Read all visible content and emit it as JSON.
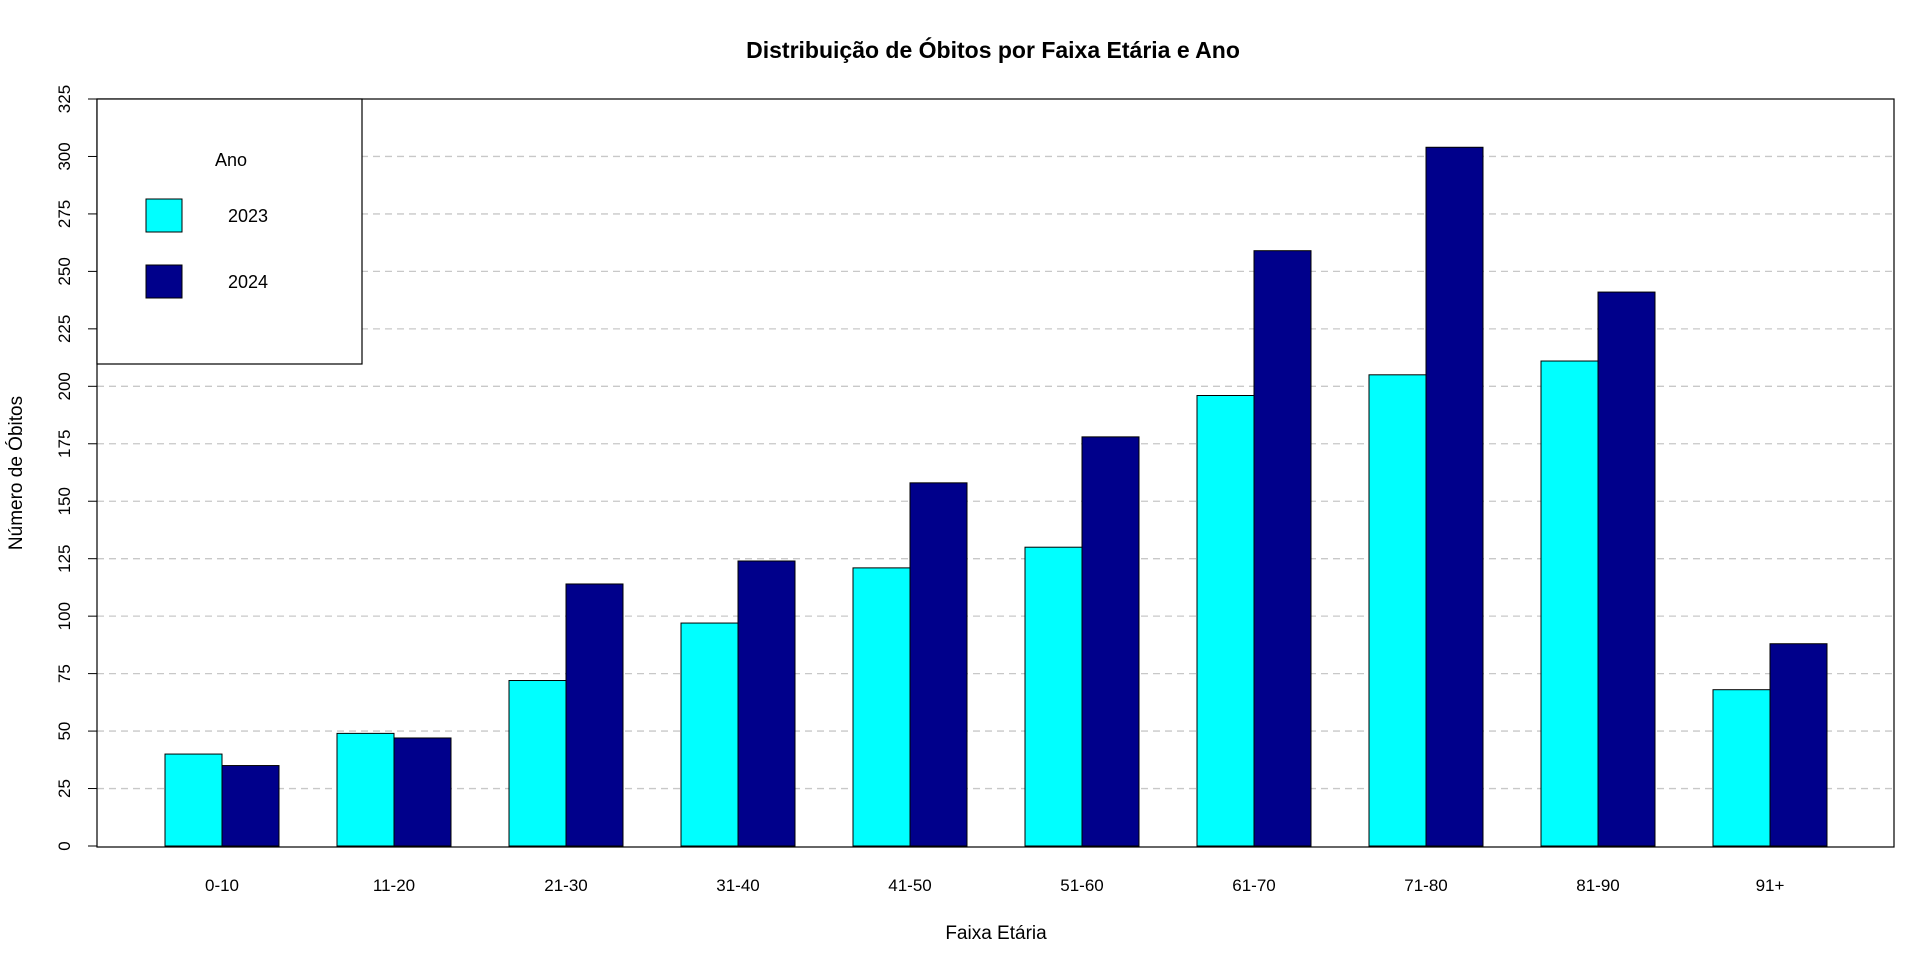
{
  "chart_data": {
    "type": "bar",
    "title": "Distribuição de Óbitos por Faixa Etária e Ano",
    "xlabel": "Faixa Etária",
    "ylabel": "Número de Óbitos",
    "categories": [
      "0-10",
      "11-20",
      "21-30",
      "31-40",
      "41-50",
      "51-60",
      "61-70",
      "71-80",
      "81-90",
      "91+"
    ],
    "series": [
      {
        "name": "2023",
        "color": "#00ffff",
        "values": [
          40,
          49,
          72,
          97,
          121,
          130,
          196,
          205,
          211,
          68
        ]
      },
      {
        "name": "2024",
        "color": "#00008b",
        "values": [
          35,
          47,
          114,
          124,
          158,
          178,
          259,
          304,
          241,
          88
        ]
      }
    ],
    "ylim": [
      0,
      325
    ],
    "yticks": [
      0,
      25,
      50,
      75,
      100,
      125,
      150,
      175,
      200,
      225,
      250,
      275,
      300,
      325
    ],
    "grid": "horizontal-dashed",
    "legend": {
      "title": "Ano",
      "placement": "top-left"
    }
  }
}
